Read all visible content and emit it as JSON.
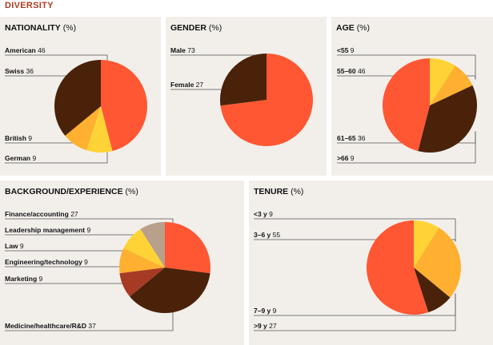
{
  "page_title": "DIVERSITY",
  "colors": {
    "title": "#b23a22",
    "panel_bg": "#f2efea",
    "leader": "#555555"
  },
  "chart_data": [
    {
      "id": "nationality",
      "type": "pie",
      "title": "NATIONALITY",
      "unit": "(%)",
      "slices": [
        {
          "name": "American",
          "value": 46,
          "color": "#ff5733"
        },
        {
          "name": "German",
          "value": 9,
          "color": "#ffd335"
        },
        {
          "name": "British",
          "value": 9,
          "color": "#ffb030"
        },
        {
          "name": "Swiss",
          "value": 36,
          "color": "#4a220a"
        }
      ],
      "labels_order": [
        "American",
        "Swiss",
        "British",
        "German"
      ]
    },
    {
      "id": "gender",
      "type": "pie",
      "title": "GENDER",
      "unit": "(%)",
      "slices": [
        {
          "name": "Male",
          "value": 73,
          "color": "#ff5733"
        },
        {
          "name": "Female",
          "value": 27,
          "color": "#4a220a"
        }
      ],
      "labels_order": [
        "Male",
        "Female"
      ]
    },
    {
      "id": "age",
      "type": "pie",
      "title": "AGE",
      "unit": "(%)",
      "slices": [
        {
          "name": "<55",
          "value": 9,
          "color": "#ffd335"
        },
        {
          "name": ">66",
          "value": 9,
          "color": "#ffb030"
        },
        {
          "name": "61–65",
          "value": 36,
          "color": "#4a220a"
        },
        {
          "name": "55–60",
          "value": 46,
          "color": "#ff5733"
        }
      ],
      "labels_order": [
        "<55",
        "55–60",
        "61–65",
        ">66"
      ]
    },
    {
      "id": "background",
      "type": "pie",
      "title": "BACKGROUND/EXPERIENCE",
      "unit": "(%)",
      "slices": [
        {
          "name": "Finance/accounting",
          "value": 27,
          "color": "#ff5733"
        },
        {
          "name": "Medicine/healthcare/R&D",
          "value": 37,
          "color": "#4a220a"
        },
        {
          "name": "Marketing",
          "value": 9,
          "color": "#a63a24"
        },
        {
          "name": "Engineering/technology",
          "value": 9,
          "color": "#ffb030"
        },
        {
          "name": "Law",
          "value": 9,
          "color": "#ffd335"
        },
        {
          "name": "Leadership management",
          "value": 9,
          "color": "#b8a08c"
        }
      ],
      "labels_order": [
        "Finance/accounting",
        "Leadership management",
        "Law",
        "Engineering/technology",
        "Marketing",
        "Medicine/healthcare/R&D"
      ]
    },
    {
      "id": "tenure",
      "type": "pie",
      "title": "TENURE",
      "unit": "(%)",
      "slices": [
        {
          "name": "<3 y",
          "value": 9,
          "color": "#ffd335"
        },
        {
          "name": ">9 y",
          "value": 27,
          "color": "#ffb030"
        },
        {
          "name": "7–9 y",
          "value": 9,
          "color": "#4a220a"
        },
        {
          "name": "3–6 y",
          "value": 55,
          "color": "#ff5733"
        }
      ],
      "labels_order": [
        "<3 y",
        "3–6 y",
        "7–9 y",
        ">9 y"
      ]
    }
  ]
}
